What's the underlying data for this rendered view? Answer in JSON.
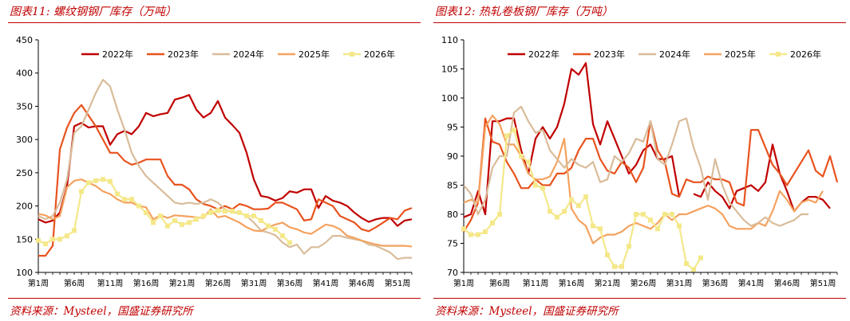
{
  "charts": [
    {
      "title": "图表11:  螺纹钢钢厂库存（万吨）",
      "source": "资料来源：Mysteel，国盛证券研究所"
    },
    {
      "title": "图表12:  热轧卷板钢厂库存（万吨）",
      "source": "资料来源：Mysteel，国盛证券研究所"
    }
  ],
  "chart_data": [
    {
      "type": "line",
      "title": "图表11:  螺纹钢钢厂库存（万吨）",
      "xlabel": "",
      "ylabel": "",
      "ylim": [
        100,
        450
      ],
      "yticks": [
        100,
        150,
        200,
        250,
        300,
        350,
        400,
        450
      ],
      "xlim": [
        1,
        53
      ],
      "xticks": [
        1,
        6,
        11,
        16,
        21,
        26,
        31,
        36,
        41,
        46,
        51
      ],
      "xtick_labels": [
        "第1周",
        "第6周",
        "第11周",
        "第16周",
        "第21周",
        "第26周",
        "第31周",
        "第36周",
        "第41周",
        "第46周",
        "第51周"
      ],
      "grid": false,
      "legend": "top",
      "series": [
        {
          "name": "2022年",
          "color": "#c00000",
          "values": [
            180,
            175,
            178,
            190,
            230,
            320,
            325,
            318,
            320,
            320,
            292,
            308,
            313,
            308,
            320,
            340,
            335,
            338,
            340,
            360,
            363,
            367,
            345,
            333,
            340,
            358,
            333,
            322,
            310,
            280,
            240,
            215,
            213,
            208,
            212,
            222,
            220,
            225,
            225,
            197,
            215,
            208,
            205,
            200,
            190,
            182,
            176,
            180,
            182,
            182,
            170,
            178,
            180
          ]
        },
        {
          "name": "2023年",
          "color": "#e8531e",
          "values": [
            125,
            125,
            140,
            285,
            318,
            340,
            352,
            336,
            320,
            300,
            280,
            280,
            268,
            262,
            265,
            270,
            270,
            270,
            245,
            232,
            232,
            225,
            210,
            203,
            200,
            195,
            200,
            195,
            203,
            200,
            195,
            195,
            196,
            205,
            205,
            200,
            195,
            178,
            180,
            210,
            205,
            200,
            185,
            180,
            175,
            165,
            162,
            168,
            175,
            182,
            180,
            193,
            197
          ]
        },
        {
          "name": "2024年",
          "color": "#d9bc9a",
          "values": [
            185,
            180,
            185,
            205,
            240,
            310,
            320,
            345,
            370,
            390,
            380,
            345,
            315,
            280,
            260,
            245,
            235,
            225,
            215,
            205,
            203,
            205,
            203,
            205,
            210,
            205,
            195,
            190,
            190,
            185,
            175,
            163,
            160,
            156,
            145,
            138,
            142,
            128,
            138,
            138,
            145,
            155,
            155,
            152,
            150,
            148,
            142,
            140,
            135,
            130,
            120,
            122,
            122
          ]
        },
        {
          "name": "2025年",
          "color": "#f4a25f",
          "values": [
            188,
            186,
            180,
            185,
            228,
            238,
            240,
            235,
            230,
            222,
            218,
            210,
            205,
            205,
            200,
            198,
            180,
            186,
            182,
            186,
            185,
            184,
            183,
            182,
            195,
            183,
            185,
            180,
            175,
            168,
            163,
            162,
            168,
            172,
            175,
            168,
            165,
            160,
            158,
            165,
            172,
            170,
            165,
            155,
            152,
            148,
            145,
            142,
            140,
            140,
            140,
            140,
            139
          ]
        },
        {
          "name": "2026年",
          "color": "#f4e88a",
          "marker": "square",
          "values": [
            148,
            143,
            150,
            150,
            155,
            163,
            222,
            235,
            238,
            240,
            237,
            218,
            210,
            210,
            200,
            190,
            175,
            185,
            170,
            178,
            172,
            175,
            180,
            185,
            190,
            193,
            192,
            192,
            190,
            185,
            185,
            178,
            170,
            165,
            155,
            145
          ]
        }
      ]
    },
    {
      "type": "line",
      "title": "图表12:  热轧卷板钢厂库存（万吨）",
      "xlabel": "",
      "ylabel": "",
      "ylim": [
        70,
        110
      ],
      "yticks": [
        70,
        75,
        80,
        85,
        90,
        95,
        100,
        105,
        110
      ],
      "xlim": [
        1,
        53
      ],
      "xticks": [
        1,
        6,
        11,
        16,
        21,
        26,
        31,
        36,
        41,
        46,
        51
      ],
      "xtick_labels": [
        "第1周",
        "第6周",
        "第11周",
        "第16周",
        "第21周",
        "第26周",
        "第31周",
        "第36周",
        "第41周",
        "第46周",
        "第51周"
      ],
      "grid": false,
      "legend": "top",
      "series": [
        {
          "name": "2022年",
          "color": "#c00000",
          "values": [
            79.5,
            80,
            84,
            80,
            96,
            96,
            96.5,
            96.5,
            91,
            87,
            93,
            95,
            93,
            95,
            99,
            105,
            104,
            106,
            95.5,
            92,
            96,
            93,
            90,
            87,
            88.5,
            91,
            92,
            89.5,
            89.5,
            90,
            83,
            null,
            83.5,
            83,
            85.5,
            84,
            83,
            81,
            84,
            84.5,
            85,
            84,
            85.5,
            92,
            87,
            84,
            80.5,
            82,
            83,
            83,
            82.5,
            81
          ]
        },
        {
          "name": "2023年",
          "color": "#e8531e",
          "values": [
            77,
            79,
            82,
            96.5,
            92.5,
            92,
            89,
            87,
            84.5,
            84.5,
            86,
            85,
            85,
            87,
            87,
            88,
            91,
            93,
            93,
            89.5,
            87.5,
            87,
            89,
            88,
            85.5,
            88,
            96,
            91,
            89,
            83.5,
            83,
            86,
            85.5,
            85.5,
            86.5,
            86,
            86,
            85.5,
            82,
            81.5,
            94.5,
            94.5,
            91.5,
            88.5,
            87,
            85,
            87,
            89,
            91,
            87.5,
            86.5,
            90,
            85.5
          ]
        },
        {
          "name": "2025年",
          "color": "#f4a25f",
          "values": [
            82,
            82.5,
            82,
            95,
            97,
            95.5,
            92,
            92,
            90,
            87,
            86,
            86,
            86.5,
            89,
            93,
            81,
            79,
            78,
            75,
            76,
            76.5,
            76.5,
            77,
            78,
            78.5,
            78,
            77.5,
            78.5,
            80,
            79,
            80,
            80,
            80.5,
            81,
            81.5,
            81,
            80,
            78,
            77.5,
            77.5,
            77.5,
            78.5,
            78,
            80.5,
            84,
            82.5,
            80.5,
            82,
            82.5,
            82,
            84
          ]
        },
        {
          "name": "2024年",
          "color": "#d9bc9a",
          "values": [
            85,
            83.5,
            80,
            82.5,
            88,
            90,
            90,
            97.5,
            98.5,
            96,
            94,
            94.5,
            91,
            89.5,
            88,
            89.5,
            88.5,
            88,
            89,
            85.5,
            86,
            90,
            89,
            90.5,
            93,
            92.5,
            96,
            89.5,
            88.5,
            92,
            96,
            96.5,
            91.5,
            88,
            82.5,
            89.5,
            85,
            82,
            80.5,
            79,
            78,
            78.5,
            79.5,
            78.5,
            78,
            78.5,
            79,
            80,
            80
          ]
        },
        {
          "name": "2026年",
          "color": "#f4e88a",
          "marker": "square",
          "values": [
            77.5,
            76.5,
            76.5,
            77,
            78.5,
            80,
            93.5,
            94.5,
            90,
            89,
            85,
            84.5,
            80.5,
            79.5,
            80.5,
            82.5,
            81.5,
            83,
            78,
            77.5,
            73,
            71,
            71,
            74.5,
            80,
            80,
            79,
            77.5,
            80,
            80,
            78,
            71.5,
            70.5,
            72.5
          ]
        }
      ]
    }
  ]
}
